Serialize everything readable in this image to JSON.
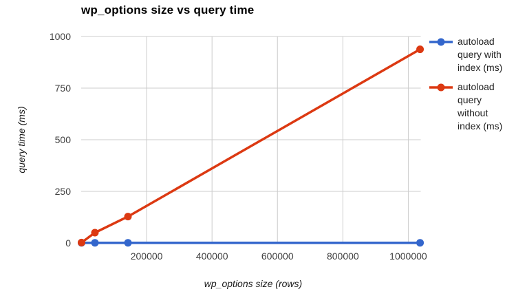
{
  "title": "wp_options size vs query time",
  "colors": {
    "series_with_index": "#3366cc",
    "series_without_index": "#dc3912",
    "grid": "#cccccc",
    "tick_text": "#404040",
    "title_text": "#000000",
    "axis_title_text": "#1a1a1a",
    "background": "#ffffff"
  },
  "legend": {
    "position": "right",
    "items": [
      {
        "label": "autoload query with index (ms)",
        "lines": [
          "autoload",
          "query with",
          "index (ms)"
        ],
        "color": "#3366cc"
      },
      {
        "label": "autoload query without index (ms)",
        "lines": [
          "autoload",
          "query",
          "without",
          "index (ms)"
        ],
        "color": "#dc3912"
      }
    ]
  },
  "chart_data": {
    "type": "line",
    "title": "wp_options size vs query time",
    "xlabel": "wp_options size (rows)",
    "ylabel": "query time (ms)",
    "x": [
      1000,
      42000,
      143000,
      1036000
    ],
    "series": [
      {
        "name": "autoload query with index (ms)",
        "color": "#3366cc",
        "values": [
          1,
          1,
          1,
          1
        ]
      },
      {
        "name": "autoload query without index (ms)",
        "color": "#dc3912",
        "values": [
          2,
          50,
          128,
          938
        ]
      }
    ],
    "x_ticks": [
      200000,
      400000,
      600000,
      800000,
      1000000
    ],
    "x_tick_labels": [
      "200000",
      "400000",
      "600000",
      "800000",
      "1000000"
    ],
    "y_ticks": [
      0,
      250,
      500,
      750,
      1000
    ],
    "y_tick_labels": [
      "0",
      "250",
      "500",
      "750",
      "1000"
    ],
    "xlim": [
      0,
      1038000
    ],
    "ylim": [
      0,
      1000
    ],
    "grid": true,
    "legend_position": "right"
  }
}
